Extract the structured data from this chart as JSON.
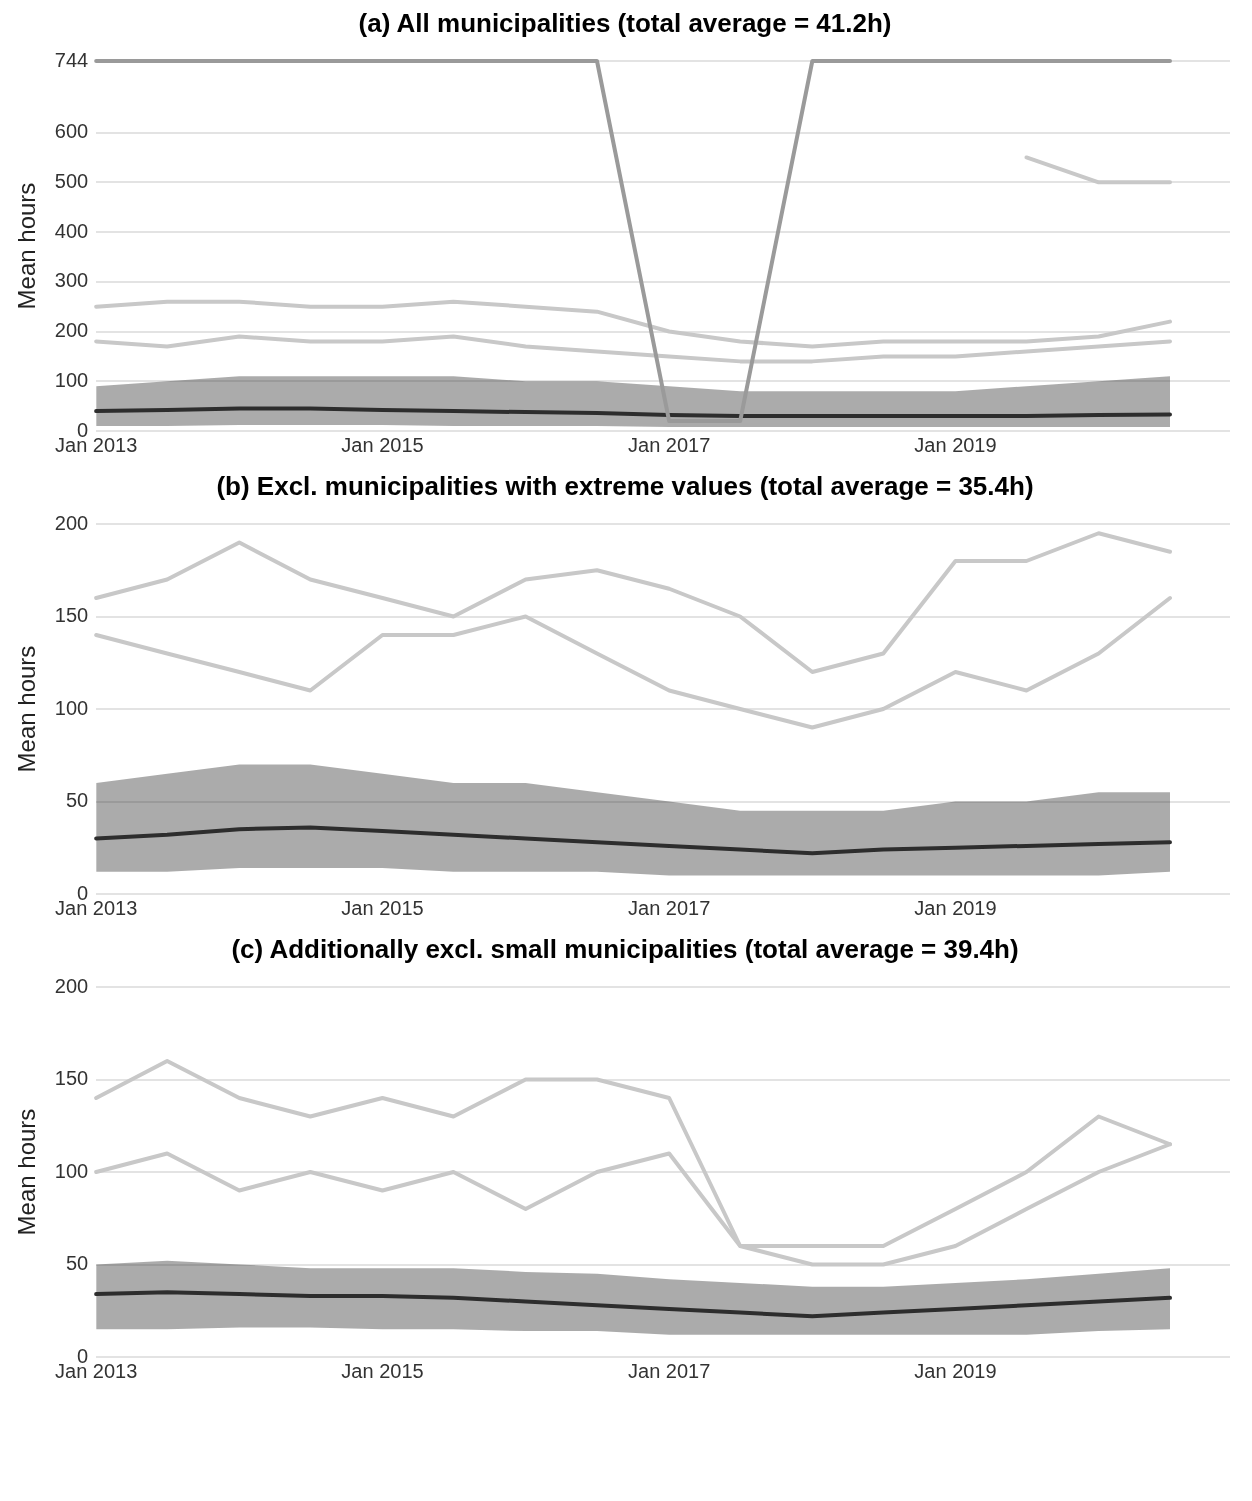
{
  "chart_data": [
    {
      "type": "line",
      "title": "(a)  All municipalities (total average = 41.2h)",
      "ylabel": "Mean hours",
      "x": [
        "2013-01",
        "2013-07",
        "2014-01",
        "2014-07",
        "2015-01",
        "2015-07",
        "2016-01",
        "2016-07",
        "2017-01",
        "2017-07",
        "2018-01",
        "2018-07",
        "2019-01",
        "2019-07",
        "2020-01",
        "2020-07"
      ],
      "series": [
        {
          "color": "#9a9a9a",
          "values": [
            744,
            744,
            744,
            744,
            744,
            744,
            744,
            744,
            20,
            20,
            744,
            744,
            744,
            744,
            744,
            744
          ]
        },
        {
          "color": "#c8c8c8",
          "values": [
            null,
            null,
            null,
            null,
            null,
            null,
            null,
            null,
            null,
            null,
            null,
            null,
            null,
            550,
            500,
            500
          ]
        },
        {
          "color": "#c8c8c8",
          "values": [
            250,
            260,
            260,
            250,
            250,
            260,
            250,
            240,
            200,
            180,
            170,
            180,
            180,
            180,
            190,
            220
          ]
        },
        {
          "color": "#c8c8c8",
          "values": [
            180,
            170,
            190,
            180,
            180,
            190,
            170,
            160,
            150,
            140,
            140,
            150,
            150,
            160,
            170,
            180
          ]
        },
        {
          "color": "#2e2e2e",
          "values": [
            40,
            42,
            45,
            45,
            42,
            40,
            38,
            36,
            32,
            30,
            30,
            30,
            30,
            30,
            32,
            33
          ],
          "lower": [
            10,
            10,
            12,
            12,
            12,
            10,
            10,
            10,
            8,
            8,
            8,
            8,
            8,
            8,
            8,
            8
          ],
          "upper": [
            90,
            100,
            110,
            110,
            110,
            110,
            100,
            100,
            90,
            80,
            80,
            80,
            80,
            90,
            100,
            110
          ]
        }
      ],
      "xlim": [
        "2013-01",
        "2020-12"
      ],
      "xticks": [
        {
          "value": "2013-01",
          "label": "Jan 2013"
        },
        {
          "value": "2015-01",
          "label": "Jan 2015"
        },
        {
          "value": "2017-01",
          "label": "Jan 2017"
        },
        {
          "value": "2019-01",
          "label": "Jan 2019"
        }
      ],
      "ylim": [
        0,
        744
      ],
      "yticks": [
        0,
        100,
        200,
        300,
        400,
        500,
        600,
        744
      ],
      "grid": "y",
      "legend": false
    },
    {
      "type": "line",
      "title": "(b)  Excl. municipalities with extreme values (total average = 35.4h)",
      "ylabel": "Mean hours",
      "x": [
        "2013-01",
        "2013-07",
        "2014-01",
        "2014-07",
        "2015-01",
        "2015-07",
        "2016-01",
        "2016-07",
        "2017-01",
        "2017-07",
        "2018-01",
        "2018-07",
        "2019-01",
        "2019-07",
        "2020-01",
        "2020-07"
      ],
      "series": [
        {
          "color": "#c8c8c8",
          "values": [
            160,
            170,
            190,
            170,
            160,
            150,
            170,
            175,
            165,
            150,
            120,
            130,
            180,
            180,
            195,
            185
          ]
        },
        {
          "color": "#c8c8c8",
          "values": [
            140,
            130,
            120,
            110,
            140,
            140,
            150,
            130,
            110,
            100,
            90,
            100,
            120,
            110,
            130,
            160
          ]
        },
        {
          "color": "#2e2e2e",
          "values": [
            30,
            32,
            35,
            36,
            34,
            32,
            30,
            28,
            26,
            24,
            22,
            24,
            25,
            26,
            27,
            28
          ],
          "lower": [
            12,
            12,
            14,
            14,
            14,
            12,
            12,
            12,
            10,
            10,
            10,
            10,
            10,
            10,
            10,
            12
          ],
          "upper": [
            60,
            65,
            70,
            70,
            65,
            60,
            60,
            55,
            50,
            45,
            45,
            45,
            50,
            50,
            55,
            55
          ]
        }
      ],
      "xlim": [
        "2013-01",
        "2020-12"
      ],
      "xticks": [
        {
          "value": "2013-01",
          "label": "Jan 2013"
        },
        {
          "value": "2015-01",
          "label": "Jan 2015"
        },
        {
          "value": "2017-01",
          "label": "Jan 2017"
        },
        {
          "value": "2019-01",
          "label": "Jan 2019"
        }
      ],
      "ylim": [
        0,
        200
      ],
      "yticks": [
        0,
        50,
        100,
        150,
        200
      ],
      "grid": "y",
      "legend": false
    },
    {
      "type": "line",
      "title": "(c)  Additionally excl. small municipalities (total average = 39.4h)",
      "ylabel": "Mean hours",
      "x": [
        "2013-01",
        "2013-07",
        "2014-01",
        "2014-07",
        "2015-01",
        "2015-07",
        "2016-01",
        "2016-07",
        "2017-01",
        "2017-07",
        "2018-01",
        "2018-07",
        "2019-01",
        "2019-07",
        "2020-01",
        "2020-07"
      ],
      "series": [
        {
          "color": "#c8c8c8",
          "values": [
            140,
            160,
            140,
            130,
            140,
            130,
            150,
            150,
            140,
            60,
            60,
            60,
            80,
            100,
            130,
            115
          ]
        },
        {
          "color": "#c8c8c8",
          "values": [
            100,
            110,
            90,
            100,
            90,
            100,
            80,
            100,
            110,
            60,
            50,
            50,
            60,
            80,
            100,
            115
          ]
        },
        {
          "color": "#2e2e2e",
          "values": [
            34,
            35,
            34,
            33,
            33,
            32,
            30,
            28,
            26,
            24,
            22,
            24,
            26,
            28,
            30,
            32
          ],
          "lower": [
            15,
            15,
            16,
            16,
            15,
            15,
            14,
            14,
            12,
            12,
            12,
            12,
            12,
            12,
            14,
            15
          ],
          "upper": [
            50,
            52,
            50,
            48,
            48,
            48,
            46,
            45,
            42,
            40,
            38,
            38,
            40,
            42,
            45,
            48
          ]
        }
      ],
      "xlim": [
        "2013-01",
        "2020-12"
      ],
      "xticks": [
        {
          "value": "2013-01",
          "label": "Jan 2013"
        },
        {
          "value": "2015-01",
          "label": "Jan 2015"
        },
        {
          "value": "2017-01",
          "label": "Jan 2017"
        },
        {
          "value": "2019-01",
          "label": "Jan 2019"
        }
      ],
      "ylim": [
        0,
        200
      ],
      "yticks": [
        0,
        50,
        100,
        150,
        200
      ],
      "grid": "y",
      "legend": false
    }
  ]
}
